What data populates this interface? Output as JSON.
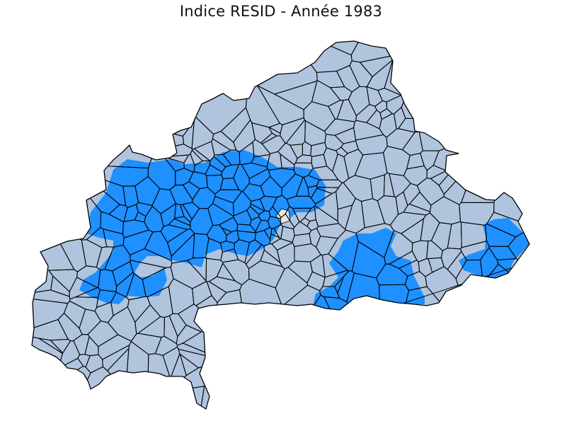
{
  "map": {
    "title": "Indice RESID - Année 1983"
  },
  "colors": {
    "background": "#ffffff",
    "default_fill": "#b0c4de",
    "highlight_fill": "#1e90ff",
    "missing_fill": "#e6e6e6",
    "border": "#000000"
  },
  "legend": {
    "shown": false
  }
}
